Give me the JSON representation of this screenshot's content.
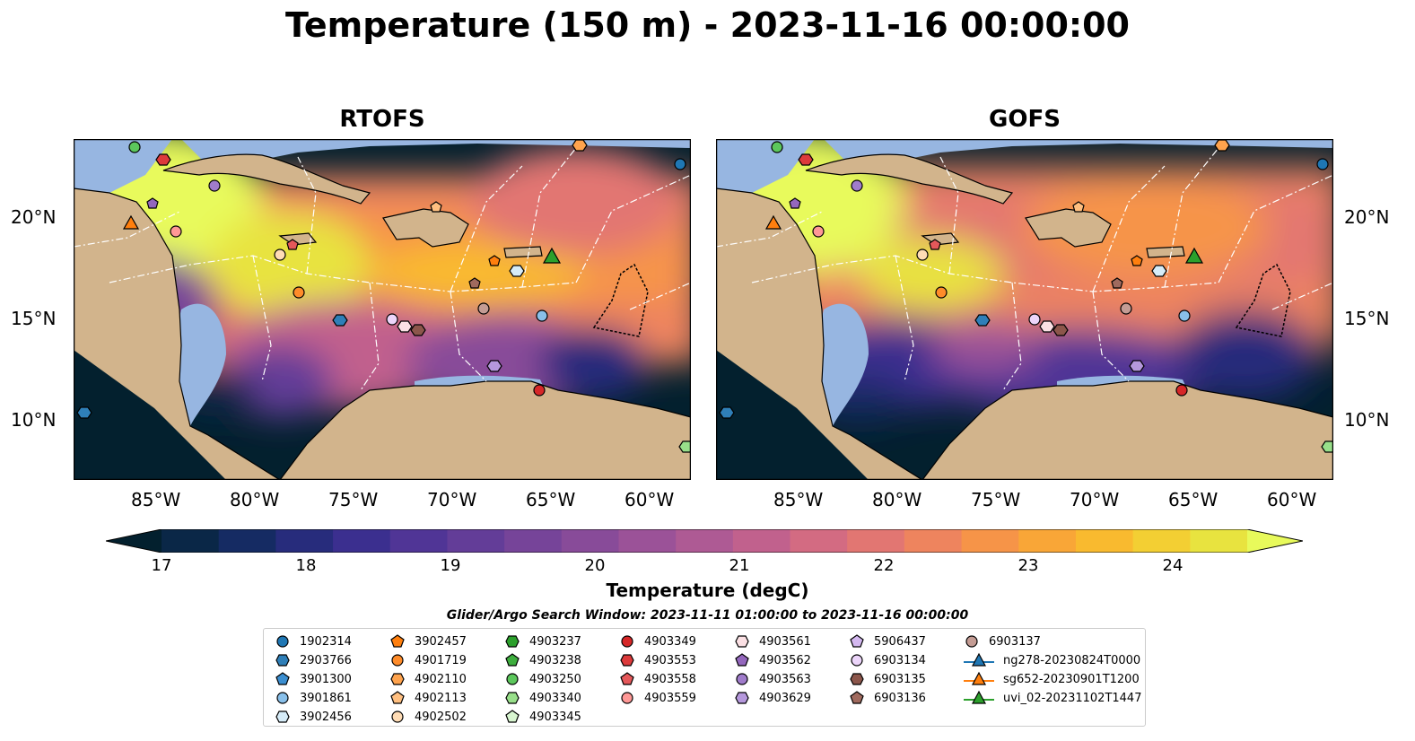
{
  "title": "Temperature (150 m) - 2023-11-16 00:00:00",
  "panels": [
    {
      "title": "RTOFS"
    },
    {
      "title": "GOFS"
    }
  ],
  "axes": {
    "x_ticks": [
      "85°W",
      "80°W",
      "75°W",
      "70°W",
      "65°W",
      "60°W"
    ],
    "y_ticks": [
      "20°N",
      "15°N",
      "10°N"
    ]
  },
  "colorbar": {
    "label": "Temperature (degC)",
    "ticks": [
      "17",
      "18",
      "19",
      "20",
      "21",
      "22",
      "23",
      "24"
    ],
    "range": [
      16.75,
      24.75
    ],
    "extend": "both",
    "colormap": "thermal",
    "colors": [
      "#03202e",
      "#0a2747",
      "#152b63",
      "#272c7c",
      "#3b2f8f",
      "#503596",
      "#633d98",
      "#764499",
      "#884b99",
      "#9b5298",
      "#ae5a94",
      "#c1618d",
      "#d36b82",
      "#e27672",
      "#ee845e",
      "#f69448",
      "#f9a637",
      "#f9ba2f",
      "#f3cf33",
      "#e8e33f",
      "#e8fa5b"
    ]
  },
  "legend": {
    "title": "Glider/Argo Search Window: 2023-11-11 01:00:00 to 2023-11-16 00:00:00",
    "columns": [
      [
        {
          "label": "1902314",
          "marker": "circle",
          "color": "#1f77b4"
        },
        {
          "label": "2903766",
          "marker": "hexagon",
          "color": "#2f7fb8"
        },
        {
          "label": "3901300",
          "marker": "pentagon",
          "color": "#3b8ed0"
        },
        {
          "label": "3901861",
          "marker": "circle",
          "color": "#89c0ea"
        },
        {
          "label": "3902456",
          "marker": "hexagon",
          "color": "#d6ecf8"
        }
      ],
      [
        {
          "label": "3902457",
          "marker": "pentagon",
          "color": "#ff7f0e"
        },
        {
          "label": "4901719",
          "marker": "circle",
          "color": "#ff8c2a"
        },
        {
          "label": "4902110",
          "marker": "hexagon",
          "color": "#ffa34d"
        },
        {
          "label": "4902113",
          "marker": "pentagon",
          "color": "#ffbf80"
        },
        {
          "label": "4902502",
          "marker": "circle",
          "color": "#ffdcb5"
        }
      ],
      [
        {
          "label": "4903237",
          "marker": "hexagon",
          "color": "#2ca02c"
        },
        {
          "label": "4903238",
          "marker": "pentagon",
          "color": "#3eae3e"
        },
        {
          "label": "4903250",
          "marker": "circle",
          "color": "#5cc75c"
        },
        {
          "label": "4903340",
          "marker": "hexagon",
          "color": "#98df8a"
        },
        {
          "label": "4903345",
          "marker": "pentagon",
          "color": "#d8f5d0"
        }
      ],
      [
        {
          "label": "4903349",
          "marker": "circle",
          "color": "#d62728"
        },
        {
          "label": "4903553",
          "marker": "hexagon",
          "color": "#dd3a3b"
        },
        {
          "label": "4903558",
          "marker": "pentagon",
          "color": "#e5585a"
        },
        {
          "label": "4903559",
          "marker": "circle",
          "color": "#ff9896"
        }
      ],
      [
        {
          "label": "4903561",
          "marker": "hexagon",
          "color": "#fbe0e4"
        },
        {
          "label": "4903562",
          "marker": "pentagon",
          "color": "#9467bd"
        },
        {
          "label": "4903563",
          "marker": "circle",
          "color": "#a07ccb"
        },
        {
          "label": "4903629",
          "marker": "hexagon",
          "color": "#b598dc"
        }
      ],
      [
        {
          "label": "5906437",
          "marker": "pentagon",
          "color": "#d4b8f0"
        },
        {
          "label": "6903134",
          "marker": "circle",
          "color": "#ecd5fa"
        },
        {
          "label": "6903135",
          "marker": "hexagon",
          "color": "#8c564b"
        },
        {
          "label": "6903136",
          "marker": "pentagon",
          "color": "#a06a5e"
        }
      ],
      [
        {
          "label": "6903137",
          "marker": "circle",
          "color": "#c49c94"
        },
        {
          "label": "ng278-20230824T0000",
          "marker": "triangle-line",
          "color": "#1f77b4"
        },
        {
          "label": "sg652-20230901T1200",
          "marker": "triangle-line",
          "color": "#ff7f0e"
        },
        {
          "label": "uvi_02-20231102T1447",
          "marker": "triangle-line",
          "color": "#2ca02c"
        }
      ]
    ]
  },
  "map_colors": {
    "land": "#d2b48c",
    "shelf": "#97b6e1",
    "contours": "#ffffff"
  }
}
